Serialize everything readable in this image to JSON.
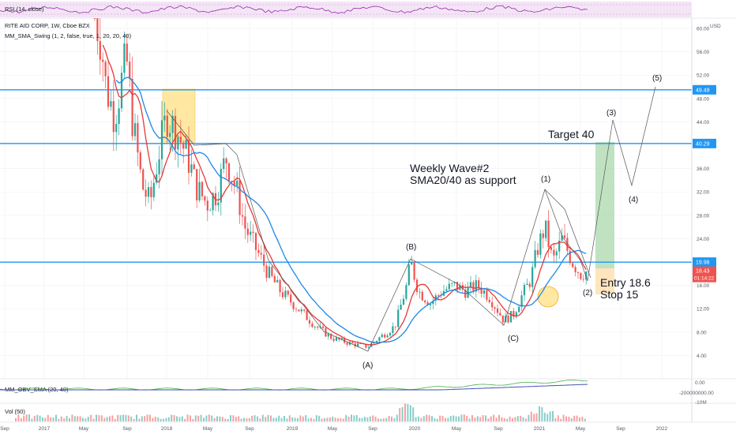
{
  "chart_data": {
    "type": "candlestick",
    "header": {
      "rsi_label": "RSI (14, close)",
      "symbol_line": "RITE AID CORP, 1W, Cboe BZX",
      "study_line": "MM_SMA_Swing (1, 2, false, true, 1, 20, 20, 40)",
      "currency": "USD"
    },
    "y_range": [
      2,
      62
    ],
    "y_ticks": [
      4,
      8,
      12,
      16,
      20,
      24,
      28,
      32,
      36,
      40,
      44,
      48,
      52,
      56,
      60
    ],
    "y_tick_labels": [
      "4.00",
      "8.00",
      "12.00",
      "16.00",
      "20.00",
      "24.00",
      "28.00",
      "32.00",
      "36.00",
      "40.00",
      "44.00",
      "48.00",
      "52.00",
      "56.00",
      "60.00"
    ],
    "x_labels": [
      "Sep",
      "2017",
      "May",
      "Sep",
      "2018",
      "May",
      "Sep",
      "2019",
      "May",
      "Sep",
      "2020",
      "May",
      "Sep",
      "2021",
      "May",
      "Sep",
      "2022"
    ],
    "horizontal_levels": [
      {
        "value": 49.49,
        "label": "49.49"
      },
      {
        "value": 40.29,
        "label": "40.29"
      },
      {
        "value": 19.98,
        "label": "19.98"
      }
    ],
    "price_tag": {
      "value": 18.43,
      "label": "18.43",
      "countdown": "01:14:22"
    },
    "annotations": {
      "weekly_wave_line1": "Weekly Wave#2",
      "weekly_wave_line2": "SMA20/40 as support",
      "target": "Target 40",
      "entry": "Entry 18.6",
      "stop": "Stop 15"
    },
    "wave_labels": [
      "(A)",
      "(B)",
      "(C)",
      "(1)",
      "(2)",
      "(3)",
      "(4)",
      "(5)"
    ],
    "obv_panel": {
      "label": "MM_OBV_SMA (20, 40)",
      "tick_labels": [
        "0.00",
        "-200000000.00",
        "-10M"
      ]
    },
    "volume_panel": {
      "label": "Vol (50)"
    },
    "colors": {
      "up": "#26a69a",
      "down": "#ef5350",
      "sma20": "#e53935",
      "sma40": "#1e88e5",
      "levels": "#2196f3",
      "target_zone": "#a5d6a7",
      "stop_zone": "#ffe0b2",
      "highlight_box": "#ffe082",
      "rsi": "#9c27b0"
    }
  }
}
